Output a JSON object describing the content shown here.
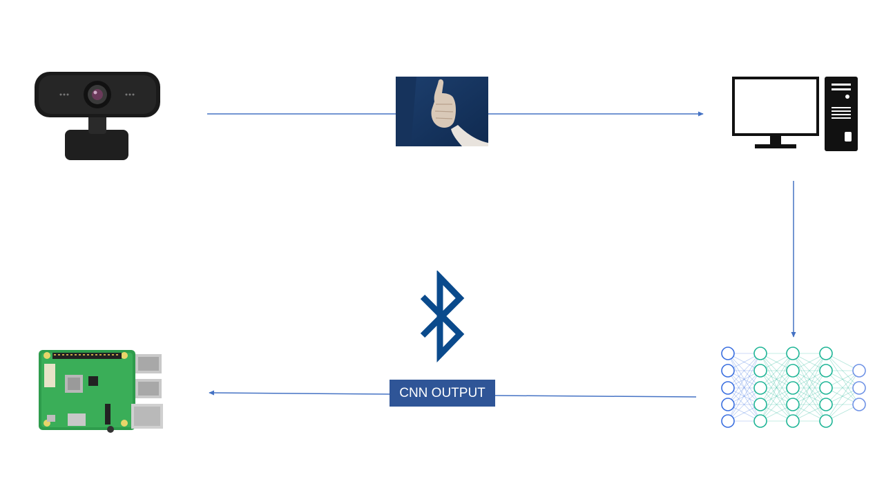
{
  "diagram": {
    "nodes": [
      {
        "id": "webcam",
        "icon": "webcam-icon"
      },
      {
        "id": "gesture-image",
        "icon": "thumbs-up-photo"
      },
      {
        "id": "computer",
        "icon": "desktop-computer-icon"
      },
      {
        "id": "neural-network",
        "icon": "neural-network-icon"
      },
      {
        "id": "raspberry-pi",
        "icon": "raspberry-pi-board-icon"
      },
      {
        "id": "bluetooth",
        "icon": "bluetooth-icon"
      }
    ],
    "edge_label": "CNN OUTPUT",
    "colors": {
      "arrow": "#4472c4",
      "label_bg": "#2f5597",
      "bluetooth": "#0a4a8c",
      "nn_blue": "#3a6fe0",
      "nn_teal": "#1fb596",
      "nn_light": "#6f93e6"
    }
  }
}
